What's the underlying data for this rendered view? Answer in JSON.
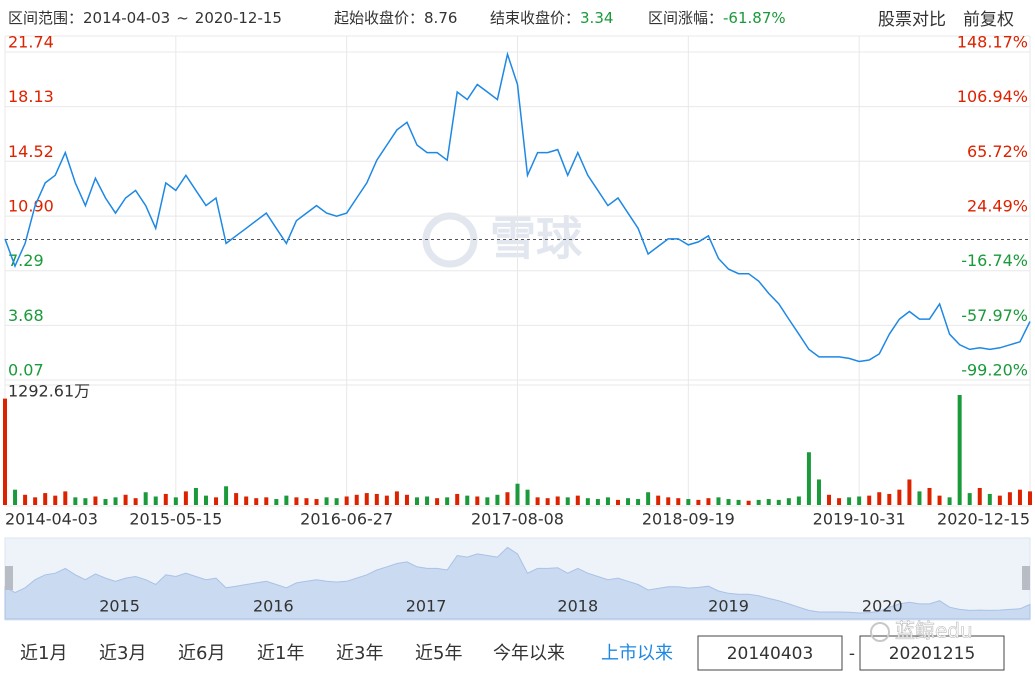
{
  "header": {
    "range": {
      "label": "区间范围：",
      "start": "2014-04-03",
      "sep": "~",
      "end": "2020-12-15"
    },
    "start_price": {
      "label": "起始收盘价：",
      "value": 8.76
    },
    "end_price": {
      "label": "结束收盘价：",
      "value": 3.34
    },
    "change": {
      "label": "区间涨幅：",
      "value": -61.87,
      "value_label": "-61.87%"
    },
    "compare": "股票对比",
    "adjust": "前复权"
  },
  "chart_data": [
    {
      "type": "line",
      "up_color": "#dd2200",
      "down_color": "#1a9a3a",
      "series": [
        {
          "name": "收盘价",
          "color": "#1e88e5",
          "values": [
            8.8,
            7,
            8.5,
            11,
            12.5,
            13,
            14.5,
            12.5,
            11,
            12.8,
            11.5,
            10.5,
            11.5,
            12,
            11,
            9.5,
            12.5,
            12,
            13,
            12,
            11,
            11.5,
            8.5,
            9,
            9.5,
            10,
            10.5,
            9.5,
            8.5,
            10,
            10.5,
            11,
            10.5,
            10.3,
            10.5,
            11.5,
            12.5,
            14,
            15,
            16,
            16.5,
            15,
            14.5,
            14.5,
            14,
            18.5,
            18,
            19,
            18.5,
            18,
            21,
            19,
            13,
            14.5,
            14.5,
            14.7,
            13,
            14.5,
            13,
            12,
            11,
            11.5,
            10.5,
            9.5,
            7.8,
            8.3,
            8.8,
            8.8,
            8.4,
            8.6,
            9,
            7.5,
            6.8,
            6.5,
            6.5,
            6,
            5.2,
            4.5,
            3.5,
            2.5,
            1.5,
            1,
            1,
            1,
            0.9,
            0.7,
            0.8,
            1.2,
            2.5,
            3.5,
            4,
            3.5,
            3.5,
            4.5,
            2.5,
            1.8,
            1.5,
            1.6,
            1.5,
            1.6,
            1.8,
            2,
            3.34
          ]
        }
      ],
      "xlim": [
        0,
        102
      ],
      "xticks": [
        {
          "value": 0,
          "label": "2014-04-03"
        },
        {
          "value": 17,
          "label": "2015-05-15"
        },
        {
          "value": 34,
          "label": "2016-06-27"
        },
        {
          "value": 51,
          "label": "2017-08-08"
        },
        {
          "value": 68,
          "label": "2018-09-19"
        },
        {
          "value": 85,
          "label": "2019-10-31"
        },
        {
          "value": 102,
          "label": "2020-12-15"
        }
      ],
      "ylim": [
        0.07,
        21.74
      ],
      "yticks": [
        0.07,
        3.68,
        7.29,
        {
          "value": 10.9,
          "label": "10.90"
        },
        14.52,
        18.13,
        21.74
      ],
      "y2lim": [
        -99.2,
        148.17
      ],
      "y2ticks": [
        {
          "value": -99.2,
          "label": "-99.20%"
        },
        {
          "value": -57.97,
          "label": "-57.97%"
        },
        {
          "value": -16.74,
          "label": "-16.74%"
        },
        {
          "value": 24.49,
          "label": "24.49%"
        },
        {
          "value": 65.72,
          "label": "65.72%"
        },
        {
          "value": 106.94,
          "label": "106.94%"
        },
        {
          "value": 148.17,
          "label": "148.17%"
        }
      ],
      "grid": true
    },
    {
      "type": "bar",
      "series": [
        {
          "name": "成交量",
          "values": [
            1250,
            180,
            120,
            90,
            140,
            110,
            160,
            90,
            80,
            100,
            70,
            90,
            120,
            80,
            150,
            100,
            130,
            90,
            160,
            200,
            110,
            90,
            220,
            140,
            100,
            80,
            90,
            70,
            110,
            90,
            80,
            70,
            90,
            80,
            100,
            120,
            140,
            130,
            110,
            160,
            120,
            90,
            100,
            80,
            90,
            130,
            110,
            100,
            90,
            120,
            150,
            250,
            180,
            90,
            80,
            100,
            90,
            110,
            80,
            70,
            90,
            60,
            80,
            70,
            150,
            110,
            90,
            80,
            70,
            60,
            80,
            90,
            70,
            60,
            50,
            60,
            70,
            60,
            80,
            100,
            620,
            300,
            120,
            80,
            90,
            100,
            110,
            150,
            130,
            180,
            300,
            160,
            200,
            110,
            90,
            1292.61,
            140,
            200,
            130,
            110,
            150,
            180,
            160
          ]
        }
      ],
      "ylim": [
        0,
        1292.61
      ],
      "yticks": [
        {
          "value": 1292.61,
          "label": "1292.61万"
        }
      ]
    },
    {
      "type": "area",
      "color": "#c9daf1",
      "xticks": [
        {
          "value": 11.4,
          "label": "2015"
        },
        {
          "value": 26.7,
          "label": "2016"
        },
        {
          "value": 41.9,
          "label": "2017"
        },
        {
          "value": 57,
          "label": "2018"
        },
        {
          "value": 72,
          "label": "2019"
        },
        {
          "value": 87.3,
          "label": "2020"
        }
      ]
    }
  ],
  "controls": {
    "ranges": [
      "近1月",
      "近3月",
      "近6月",
      "近1年",
      "近3年",
      "近5年",
      "今年以来",
      "上市以来"
    ],
    "active": 7,
    "start_input": "20140403",
    "sep": "-",
    "end_input": "20201215"
  },
  "watermark": "雪球",
  "brand": "蓝鲸edu"
}
